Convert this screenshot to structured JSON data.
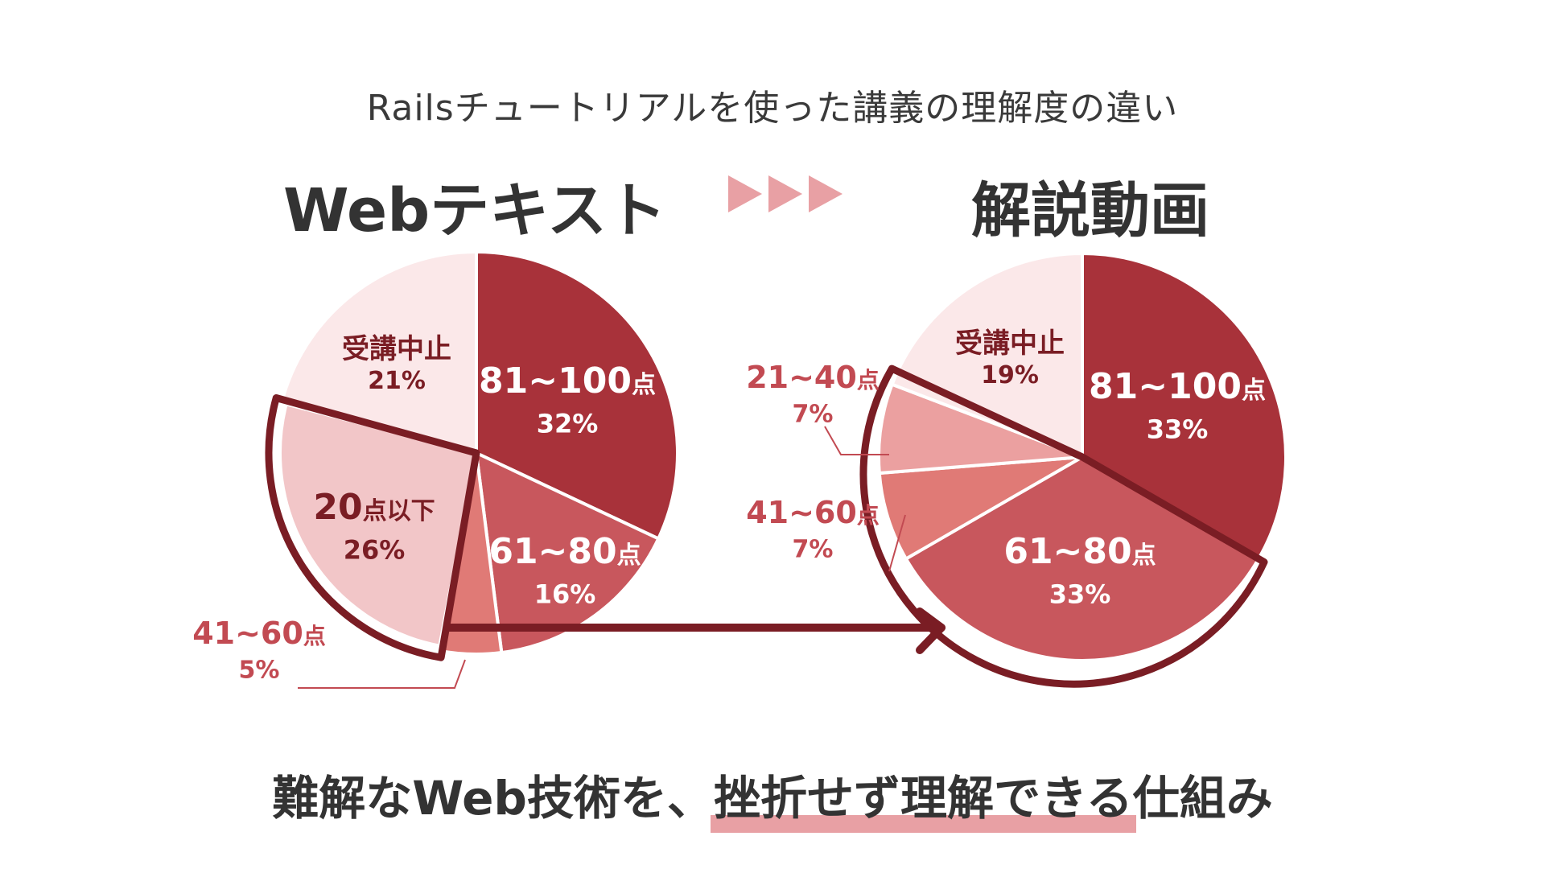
{
  "title": "Railsチュートリアルを使った講義の理解度の違い",
  "headings": {
    "left": "Webテキスト",
    "right": "解説動画"
  },
  "bottom": {
    "before": "難解なWeb技術を、",
    "highlight": "挫折せず理解できる",
    "after": "仕組み"
  },
  "colors": {
    "accent_dark": "#7a1d24",
    "arrow_triangles": "#e8a0a4",
    "highlight": "#e8a0a4"
  },
  "chart_data": [
    {
      "type": "pie",
      "title": "Webテキスト",
      "slices": [
        {
          "label": "81~100",
          "unit": "点",
          "percent_text": "32%",
          "value": 32,
          "color": "#a8323a"
        },
        {
          "label": "61~80",
          "unit": "点",
          "percent_text": "16%",
          "value": 16,
          "color": "#c8575d"
        },
        {
          "label": "41~60",
          "unit": "点",
          "percent_text": "5%",
          "value": 5,
          "color": "#e07a76",
          "external": true
        },
        {
          "label": "20",
          "unit": "点以下",
          "percent_text": "26%",
          "value": 26,
          "color": "#f2c6c8",
          "emphasized": true
        },
        {
          "label": "受講中止",
          "unit": "",
          "percent_text": "21%",
          "value": 21,
          "color": "#fbe8e9"
        }
      ]
    },
    {
      "type": "pie",
      "title": "解説動画",
      "slices": [
        {
          "label": "81~100",
          "unit": "点",
          "percent_text": "33%",
          "value": 33,
          "color": "#a8323a"
        },
        {
          "label": "61~80",
          "unit": "点",
          "percent_text": "33%",
          "value": 33,
          "color": "#c8575d"
        },
        {
          "label": "41~60",
          "unit": "点",
          "percent_text": "7%",
          "value": 7,
          "color": "#e07a76",
          "external": true
        },
        {
          "label": "21~40",
          "unit": "点",
          "percent_text": "7%",
          "value": 7,
          "color": "#eba0a0",
          "external": true
        },
        {
          "label": "受講中止",
          "unit": "",
          "percent_text": "19%",
          "value": 19,
          "color": "#fbe8e9"
        }
      ]
    }
  ]
}
